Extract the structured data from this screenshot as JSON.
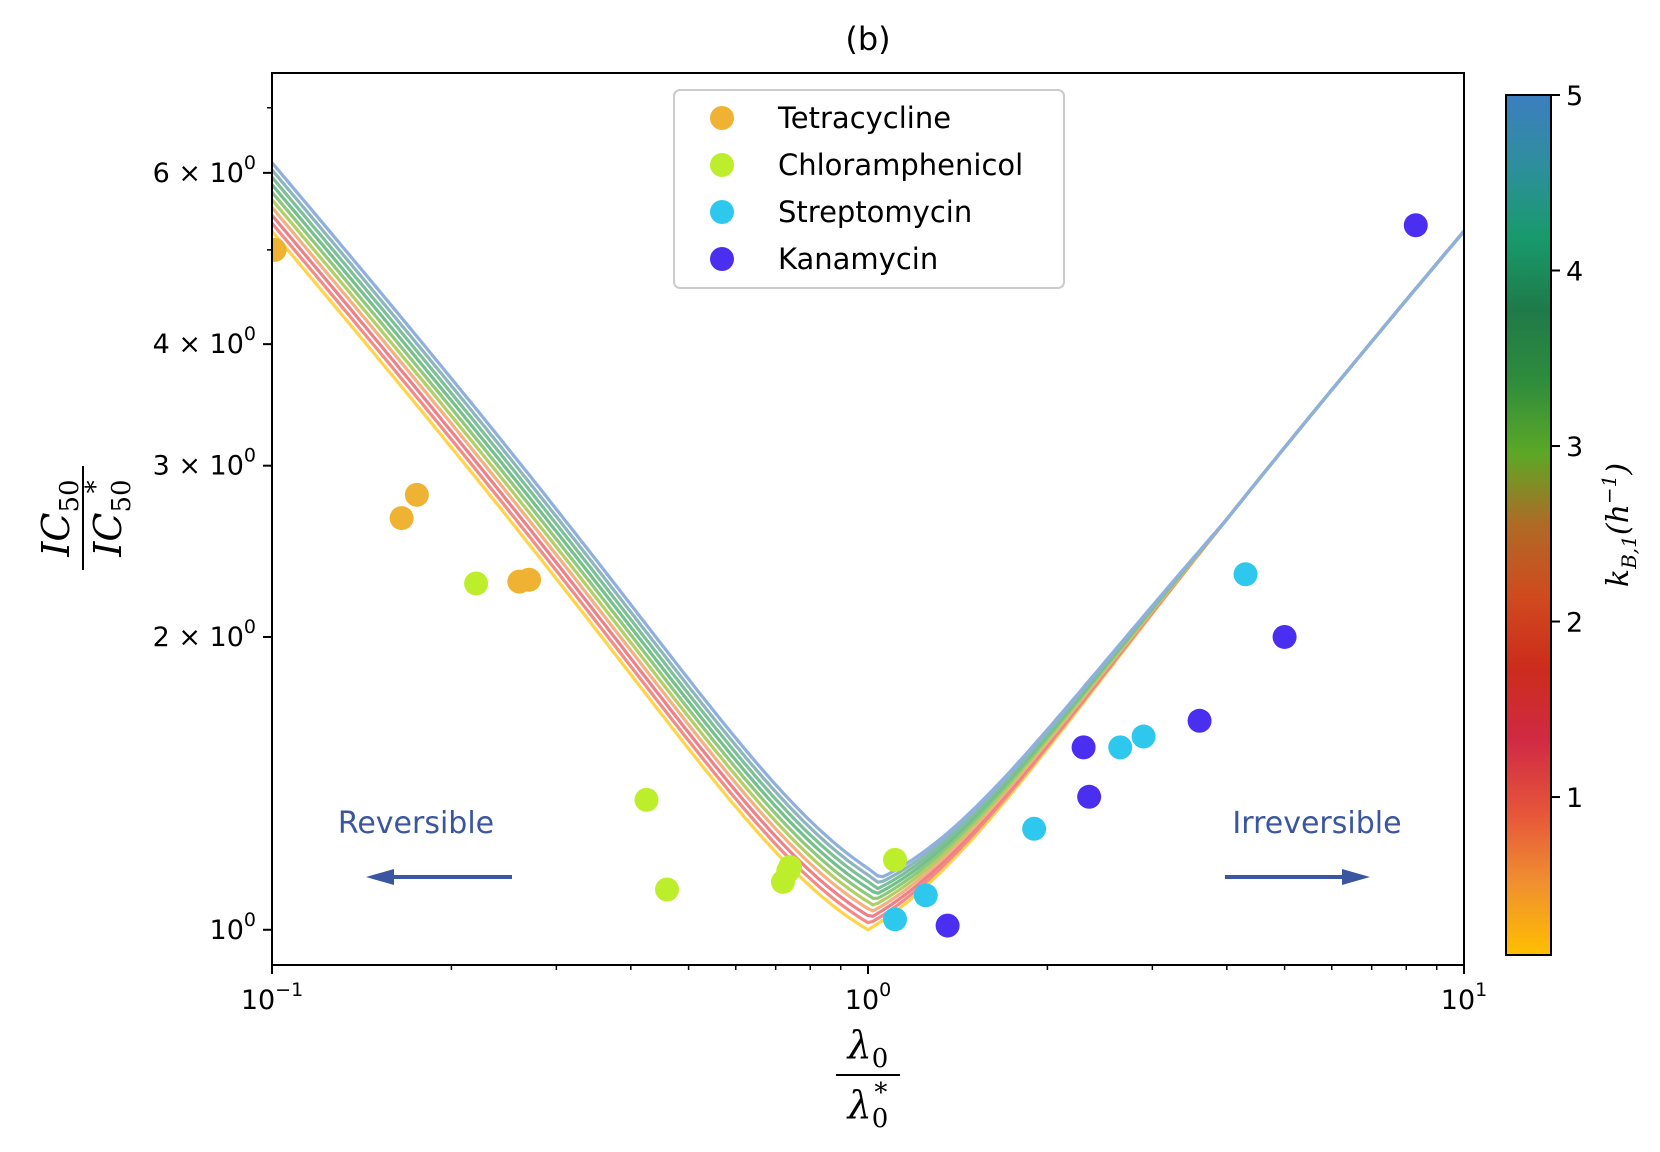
{
  "chart_data": {
    "type": "scatter",
    "title": "(b)",
    "xlabel_num": "λ0",
    "xlabel_den": "λ0*",
    "ylabel_num": "IC50",
    "ylabel_den": "IC50*",
    "xscale": "log",
    "yscale": "log",
    "xlim": [
      0.1,
      10
    ],
    "ylim": [
      0.92,
      7.6
    ],
    "x_ticks": [
      {
        "value": 0.1,
        "base": "10",
        "exp": "−1"
      },
      {
        "value": 1,
        "base": "10",
        "exp": "0"
      },
      {
        "value": 10,
        "base": "10",
        "exp": "1"
      }
    ],
    "y_ticks": [
      {
        "value": 1,
        "base": "10",
        "exp": "0",
        "coef": ""
      },
      {
        "value": 2,
        "base": "10",
        "exp": "0",
        "coef": "2 × "
      },
      {
        "value": 3,
        "base": "10",
        "exp": "0",
        "coef": "3 × "
      },
      {
        "value": 4,
        "base": "10",
        "exp": "0",
        "coef": "4 × "
      },
      {
        "value": 6,
        "base": "10",
        "exp": "0",
        "coef": "6 × "
      }
    ],
    "legend_position": "top-center",
    "series": [
      {
        "name": "Tetracycline",
        "color": "#f0b232",
        "points": [
          [
            0.101,
            5.0
          ],
          [
            0.165,
            2.65
          ],
          [
            0.175,
            2.8
          ],
          [
            0.26,
            2.28
          ],
          [
            0.27,
            2.29
          ]
        ]
      },
      {
        "name": "Chloramphenicol",
        "color": "#bdee2c",
        "points": [
          [
            0.22,
            2.27
          ],
          [
            0.425,
            1.36
          ],
          [
            0.46,
            1.1
          ],
          [
            0.72,
            1.12
          ],
          [
            0.735,
            1.15
          ],
          [
            0.74,
            1.16
          ],
          [
            1.11,
            1.18
          ]
        ]
      },
      {
        "name": "Streptomycin",
        "color": "#2ec8ef",
        "points": [
          [
            1.11,
            1.025
          ],
          [
            1.25,
            1.085
          ],
          [
            1.9,
            1.27
          ],
          [
            2.65,
            1.54
          ],
          [
            2.9,
            1.58
          ],
          [
            4.3,
            2.32
          ]
        ]
      },
      {
        "name": "Kanamycin",
        "color": "#4a2ff0",
        "points": [
          [
            1.36,
            1.01
          ],
          [
            2.3,
            1.54
          ],
          [
            2.35,
            1.37
          ],
          [
            3.6,
            1.64
          ],
          [
            5.0,
            2.0
          ],
          [
            8.3,
            5.3
          ]
        ]
      }
    ],
    "model_curves": {
      "label": "k_B,1 (h^-1) colored curves",
      "kB1_values": [
        0.1,
        0.65,
        1.2,
        1.75,
        2.3,
        2.85,
        3.4,
        3.95,
        4.5,
        5.0
      ],
      "colors": [
        "#ffd34a",
        "#f48a86",
        "#ee8088",
        "#f4b080",
        "#b2cf66",
        "#8ec87a",
        "#74c08c",
        "#7cc096",
        "#8cb6bc",
        "#8fb0de"
      ],
      "minima": [
        1.0,
        1.015,
        1.03,
        1.045,
        1.06,
        1.075,
        1.09,
        1.105,
        1.12,
        1.135
      ],
      "exponent": 0.72
    },
    "annotations": [
      {
        "text": "Reversible",
        "direction": "left",
        "color": "#3a56a0"
      },
      {
        "text": "Irreversible",
        "direction": "right",
        "color": "#3a56a0"
      }
    ],
    "colorbar": {
      "label": "k_{B,1}(h^{-1})",
      "label_main": "k",
      "label_sub": "B,1",
      "label_paren_open": "(h",
      "label_sup": "−1",
      "label_paren_close": ")",
      "range": [
        0.1,
        5
      ],
      "ticks": [
        1,
        2,
        3,
        4,
        5
      ],
      "tick_labels": [
        "1",
        "2",
        "3",
        "4",
        "5"
      ],
      "colormap": [
        "#ffbf00",
        "#f09030",
        "#e5543a",
        "#d02a44",
        "#cc2c1c",
        "#d04a1e",
        "#b06a26",
        "#5ca826",
        "#2e8c3c",
        "#1f7a48",
        "#189a6c",
        "#2d8f9c",
        "#3c7ec0"
      ]
    }
  }
}
